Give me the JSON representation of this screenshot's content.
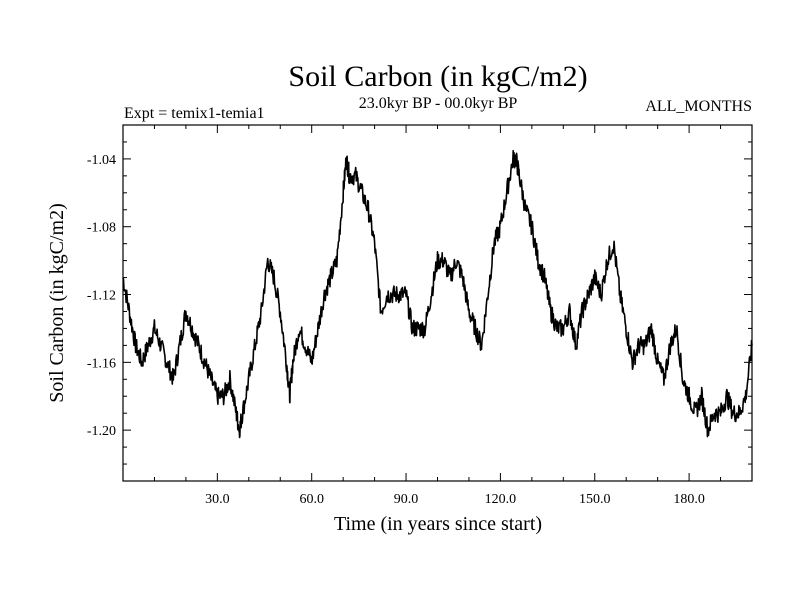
{
  "chart_data": {
    "type": "line",
    "title": "Soil Carbon (in kgC/m2)",
    "subtitle": "23.0kyr BP - 00.0kyr BP",
    "left_annotation": "Expt = temix1-temia1",
    "right_annotation": "ALL_MONTHS",
    "xlabel": "Time (in years since start)",
    "ylabel": "Soil Carbon (in kgC/m2)",
    "xlim": [
      0,
      200
    ],
    "ylim": [
      -1.23,
      -1.02
    ],
    "x_major_ticks": [
      30,
      60,
      90,
      120,
      150,
      180
    ],
    "x_tick_labels": [
      "30.0",
      "60.0",
      "90.0",
      "120.0",
      "150.0",
      "180.0"
    ],
    "y_major_ticks": [
      -1.04,
      -1.08,
      -1.12,
      -1.16,
      -1.2
    ],
    "y_tick_labels": [
      "-1.04",
      "-1.08",
      "-1.12",
      "-1.16",
      "-1.20"
    ],
    "series": [
      {
        "name": "Soil Carbon",
        "color": "#000000",
        "x": [
          0,
          2,
          4,
          6,
          8,
          10,
          12,
          14,
          16,
          18,
          20,
          22,
          24,
          26,
          28,
          30,
          32,
          34,
          36,
          37,
          38,
          40,
          42,
          44,
          46,
          48,
          50,
          52,
          53,
          54,
          56,
          58,
          60,
          62,
          64,
          66,
          68,
          70,
          71,
          72,
          74,
          76,
          78,
          80,
          82,
          84,
          86,
          88,
          90,
          92,
          94,
          96,
          98,
          100,
          102,
          104,
          106,
          108,
          110,
          112,
          114,
          116,
          118,
          120,
          122,
          124,
          125,
          126,
          128,
          130,
          132,
          134,
          136,
          138,
          140,
          142,
          144,
          146,
          148,
          150,
          152,
          154,
          156,
          158,
          160,
          162,
          164,
          166,
          168,
          170,
          172,
          174,
          176,
          178,
          180,
          182,
          184,
          186,
          188,
          190,
          192,
          194,
          196,
          198,
          200
        ],
        "values": [
          -1.11,
          -1.13,
          -1.15,
          -1.16,
          -1.15,
          -1.14,
          -1.15,
          -1.16,
          -1.17,
          -1.15,
          -1.13,
          -1.14,
          -1.15,
          -1.16,
          -1.17,
          -1.18,
          -1.18,
          -1.17,
          -1.19,
          -1.2,
          -1.19,
          -1.17,
          -1.15,
          -1.13,
          -1.1,
          -1.11,
          -1.13,
          -1.16,
          -1.18,
          -1.16,
          -1.14,
          -1.15,
          -1.16,
          -1.14,
          -1.12,
          -1.11,
          -1.1,
          -1.06,
          -1.04,
          -1.05,
          -1.05,
          -1.06,
          -1.07,
          -1.09,
          -1.13,
          -1.12,
          -1.12,
          -1.12,
          -1.12,
          -1.14,
          -1.14,
          -1.14,
          -1.12,
          -1.1,
          -1.1,
          -1.11,
          -1.1,
          -1.11,
          -1.13,
          -1.14,
          -1.15,
          -1.12,
          -1.09,
          -1.08,
          -1.06,
          -1.04,
          -1.04,
          -1.05,
          -1.07,
          -1.08,
          -1.1,
          -1.11,
          -1.13,
          -1.14,
          -1.14,
          -1.13,
          -1.15,
          -1.13,
          -1.12,
          -1.11,
          -1.12,
          -1.1,
          -1.09,
          -1.12,
          -1.14,
          -1.16,
          -1.15,
          -1.15,
          -1.14,
          -1.16,
          -1.17,
          -1.15,
          -1.14,
          -1.17,
          -1.18,
          -1.19,
          -1.18,
          -1.2,
          -1.19,
          -1.19,
          -1.18,
          -1.19,
          -1.19,
          -1.18,
          -1.15
        ]
      }
    ]
  }
}
